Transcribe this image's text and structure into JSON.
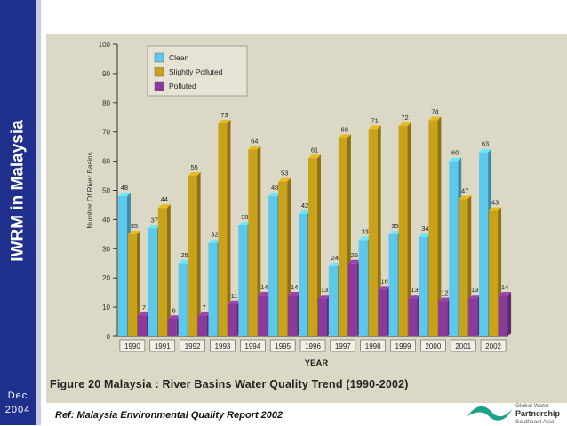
{
  "sidebar": {
    "title": "IWRM in Malaysia",
    "date_line1": "Dec",
    "date_line2": "2004"
  },
  "figure_caption": "Figure 20 Malaysia : River Basins Water Quality Trend (1990-2002)",
  "reference": "Ref: Malaysia Environmental Quality Report 2002",
  "logo": {
    "line1": "Global Water",
    "line2": "Partnership",
    "line3": "Southeast Asia"
  },
  "chart_data": {
    "type": "bar",
    "title": "",
    "xlabel": "YEAR",
    "ylabel": "Number Of River Basins",
    "ylim": [
      0,
      100
    ],
    "yticks": [
      0,
      10,
      20,
      30,
      40,
      50,
      60,
      70,
      80,
      90,
      100
    ],
    "legend_position": "top-left",
    "categories": [
      "1990",
      "1991",
      "1992",
      "1993",
      "1994",
      "1995",
      "1996",
      "1997",
      "1998",
      "1999",
      "2000",
      "2001",
      "2002"
    ],
    "series": [
      {
        "name": "Clean",
        "color": "#5cc8ec",
        "values": [
          48,
          37,
          25,
          32,
          38,
          48,
          42,
          24,
          33,
          35,
          34,
          60,
          63
        ]
      },
      {
        "name": "Slightly Polluted",
        "color": "#c9a21a",
        "values": [
          35,
          44,
          55,
          73,
          64,
          53,
          61,
          68,
          71,
          72,
          74,
          47,
          43
        ]
      },
      {
        "name": "Polluted",
        "color": "#8a3a9a",
        "values": [
          7,
          6,
          7,
          11,
          14,
          14,
          13,
          25,
          16,
          13,
          12,
          13,
          14
        ]
      }
    ]
  }
}
